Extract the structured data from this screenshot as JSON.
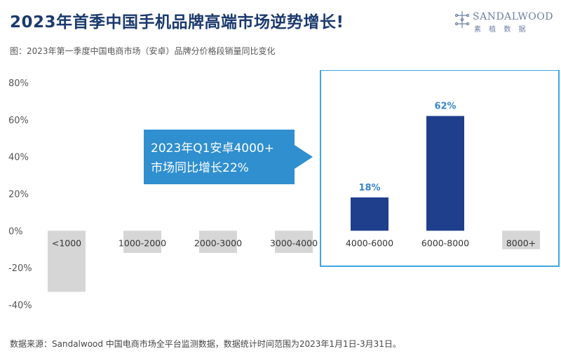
{
  "header": {
    "title": "2023年首季中国手机品牌高端市场逆势增长!",
    "subtitle": "图：2023年第一季度中国电商市场（安卓）品牌分价格段销量同比变化",
    "logo_name": "SANDALWOOD",
    "logo_cn": "素 植 数 据"
  },
  "footer": {
    "source": "数据来源：Sandalwood 中国电商市场全平台监测数据，数据统计时间范围为2023年1月1日-3月31日。"
  },
  "colors": {
    "title": "#1b3a6e",
    "bar_positive": "#1f3f8c",
    "bar_negative": "#d6d6d6",
    "highlight": "#3ba7e0",
    "callout_bg": "#2f8fcf",
    "label": "#3a86c8"
  },
  "chart_data": {
    "type": "bar",
    "categories": [
      "<1000",
      "1000-2000",
      "2000-3000",
      "3000-4000",
      "4000-6000",
      "6000-8000",
      "8000+"
    ],
    "values": [
      -33,
      -12,
      -12,
      -12,
      18,
      62,
      -10
    ],
    "data_labels": [
      "",
      "",
      "",
      "",
      "18%",
      "62%",
      ""
    ],
    "ylim": [
      -40,
      80
    ],
    "yticks": [
      "80%",
      "60%",
      "40%",
      "20%",
      "0%",
      "-20%",
      "-40%"
    ],
    "ytick_values": [
      80,
      60,
      40,
      20,
      0,
      -20,
      -40
    ],
    "grid": false,
    "legend": "none",
    "highlight_categories": [
      "4000-6000",
      "6000-8000",
      "8000+"
    ],
    "annotation": {
      "line1": "2023年Q1安卓4000+",
      "line2": "市场同比增长22%"
    }
  }
}
